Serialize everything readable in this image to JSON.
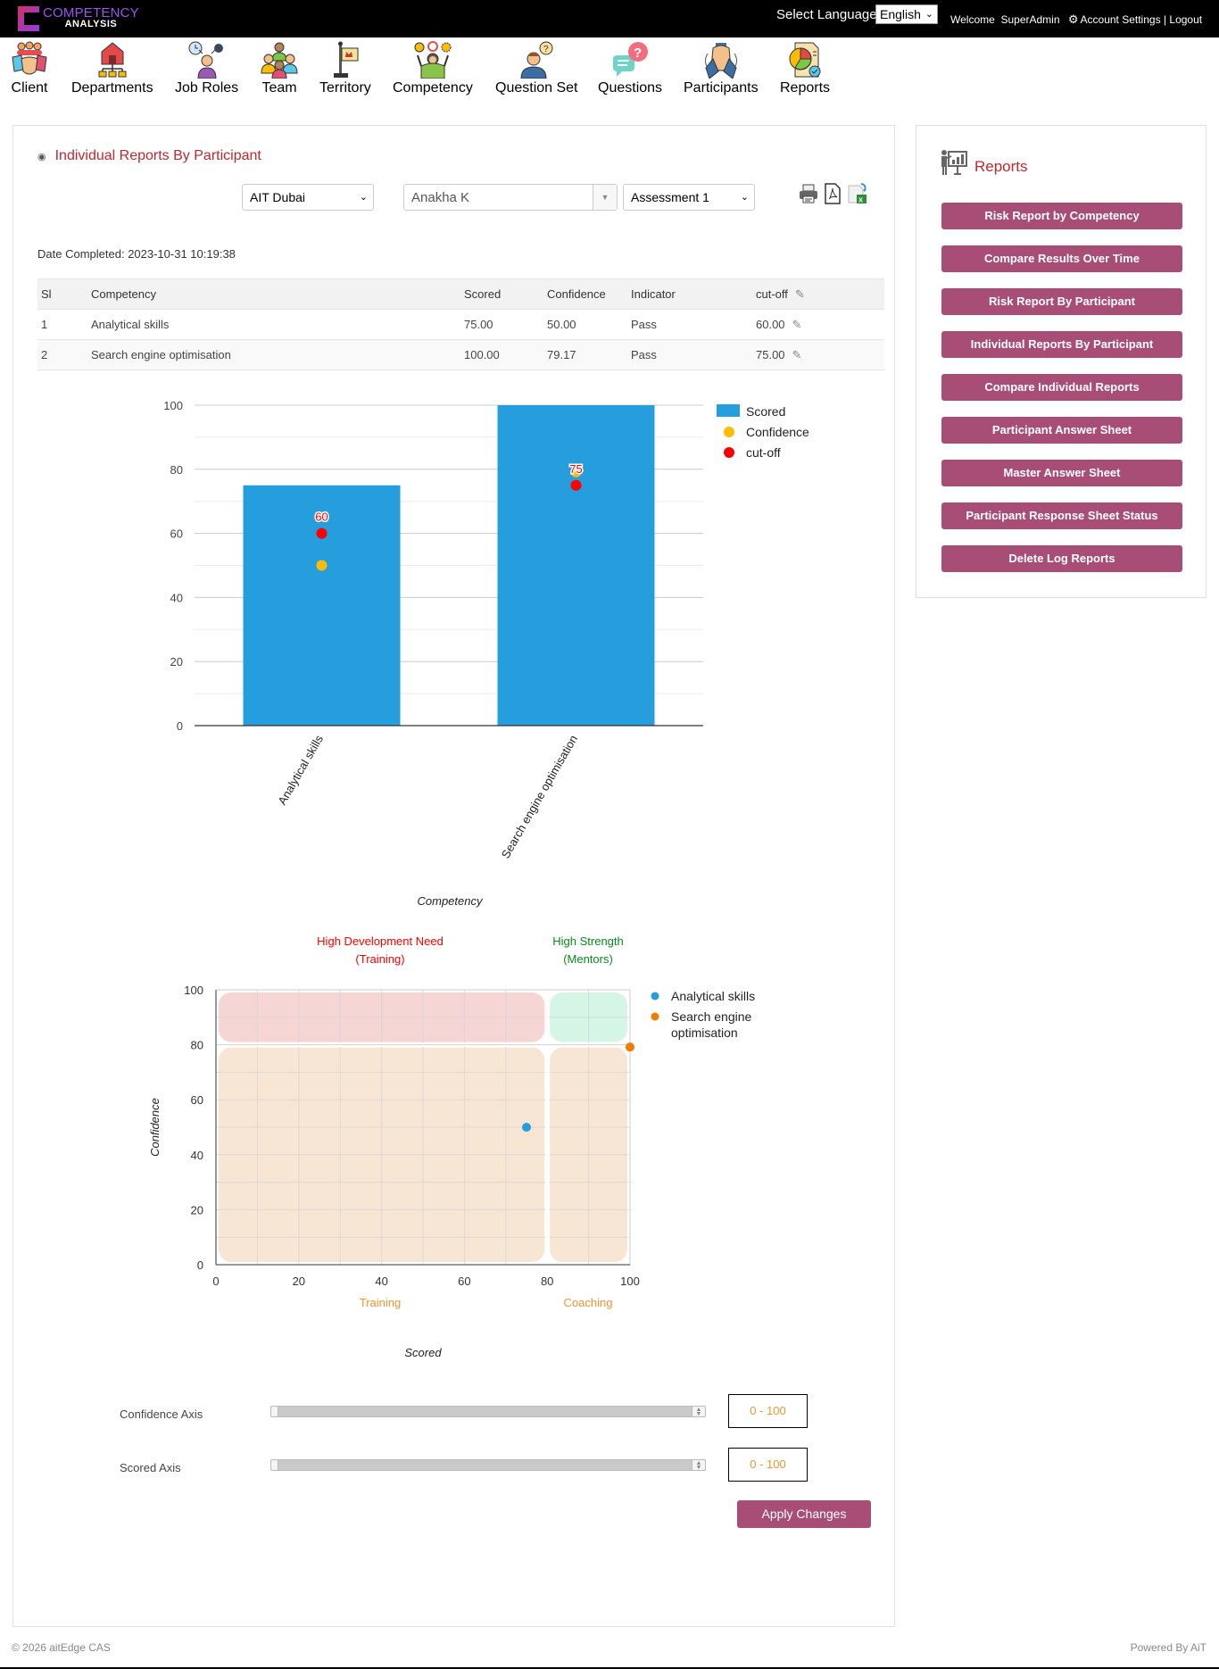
{
  "header": {
    "logo_line1": "COMPETENCY",
    "logo_line2": "ANALYSIS",
    "language_label": "Select Language",
    "language_selected": "English",
    "welcome": "Welcome",
    "username": "SuperAdmin",
    "account_settings": "Account Settings",
    "separator": "|",
    "logout": "Logout"
  },
  "nav": {
    "items": [
      {
        "label": "Client",
        "icon": "handshake-icon"
      },
      {
        "label": "Departments",
        "icon": "org-chart-icon"
      },
      {
        "label": "Job Roles",
        "icon": "job-roles-icon"
      },
      {
        "label": "Team",
        "icon": "team-icon"
      },
      {
        "label": "Territory",
        "icon": "flag-icon"
      },
      {
        "label": "Competency",
        "icon": "competency-icon"
      },
      {
        "label": "Question Set",
        "icon": "question-set-icon"
      },
      {
        "label": "Questions",
        "icon": "questions-icon"
      },
      {
        "label": "Participants",
        "icon": "participants-icon"
      },
      {
        "label": "Reports",
        "icon": "reports-icon"
      }
    ]
  },
  "main": {
    "title": "Individual Reports By Participant",
    "filters": {
      "client": "AIT Dubai",
      "participant": "Anakha K",
      "assessment": "Assessment 1"
    },
    "date_completed_label": "Date Completed:",
    "date_completed": "2023-10-31 10:19:38",
    "table": {
      "headers": [
        "Sl",
        "Competency",
        "Scored",
        "Confidence",
        "Indicator",
        "cut-off"
      ],
      "rows": [
        {
          "sl": "1",
          "competency": "Analytical skills",
          "scored": "75.00",
          "confidence": "50.00",
          "indicator": "Pass",
          "cutoff": "60.00"
        },
        {
          "sl": "2",
          "competency": "Search engine optimisation",
          "scored": "100.00",
          "confidence": "79.17",
          "indicator": "Pass",
          "cutoff": "75.00"
        }
      ]
    },
    "sliders": {
      "confidence_label": "Confidence Axis",
      "confidence_range": "0 - 100",
      "scored_label": "Scored Axis",
      "scored_range": "0 - 100"
    },
    "apply_label": "Apply Changes"
  },
  "sidebar": {
    "title": "Reports",
    "buttons": [
      "Risk Report by Competency",
      "Compare Results Over Time",
      "Risk Report By Participant",
      "Individual Reports By Participant",
      "Compare Individual Reports",
      "Participant Answer Sheet",
      "Master Answer Sheet",
      "Participant Response Sheet Status",
      "Delete Log Reports"
    ]
  },
  "footer": {
    "copyright": "© 2026 aitEdge CAS",
    "powered_by": "Powered By AiT"
  },
  "colors": {
    "accent_red": "#c1272d",
    "button_plum": "#a84e76",
    "bar_blue": "#269ddc",
    "confidence_yellow": "#fbbc05",
    "cutoff_red": "#ff0000",
    "scatter_orange": "#f07c00",
    "range_orange": "#f39330"
  },
  "chart_data": [
    {
      "type": "bar",
      "title": "",
      "categories": [
        "Analytical skills",
        "Search engine optimisation"
      ],
      "series": [
        {
          "name": "Scored",
          "kind": "bar",
          "color": "#269ddc",
          "values": [
            75,
            100
          ]
        },
        {
          "name": "Confidence",
          "kind": "point",
          "color": "#fbbc05",
          "values": [
            50,
            79.17
          ]
        },
        {
          "name": "cut-off",
          "kind": "point",
          "color": "#ff0000",
          "values": [
            60,
            75
          ],
          "data_labels": [
            "60",
            "75"
          ]
        }
      ],
      "xlabel": "Competency",
      "ylabel": "",
      "yticks": [
        0,
        20,
        40,
        60,
        80,
        100
      ],
      "ylim": [
        0,
        100
      ],
      "grid": true,
      "legend_position": "right"
    },
    {
      "type": "scatter",
      "title": "",
      "series": [
        {
          "name": "Analytical skills",
          "color": "#269ddc",
          "x": [
            75
          ],
          "y": [
            50
          ]
        },
        {
          "name": "Search engine optimisation",
          "color": "#f07c00",
          "x": [
            100
          ],
          "y": [
            79.17
          ]
        }
      ],
      "xlabel": "Scored",
      "ylabel": "Confidence",
      "xticks": [
        0,
        20,
        40,
        60,
        80,
        100
      ],
      "yticks": [
        0,
        20,
        40,
        60,
        80,
        100
      ],
      "xlim": [
        0,
        100
      ],
      "ylim": [
        0,
        100
      ],
      "grid": true,
      "legend_position": "right",
      "quadrants": [
        {
          "label": "High Development Need (Training)",
          "x": [
            0,
            80
          ],
          "y": [
            80,
            100
          ],
          "color": "#f6d5d5",
          "label_color": "#ff0000"
        },
        {
          "label": "High Strength (Mentors)",
          "x": [
            80,
            100
          ],
          "y": [
            80,
            100
          ],
          "color": "#d5f5e5",
          "label_color": "#0a8a1a"
        },
        {
          "label": "Training",
          "x": [
            0,
            80
          ],
          "y": [
            0,
            80
          ],
          "color": "#f8e6d5",
          "label_color": "#f39330"
        },
        {
          "label": "Coaching",
          "x": [
            80,
            100
          ],
          "y": [
            0,
            80
          ],
          "color": "#f8e6d5",
          "label_color": "#f39330"
        }
      ]
    }
  ]
}
